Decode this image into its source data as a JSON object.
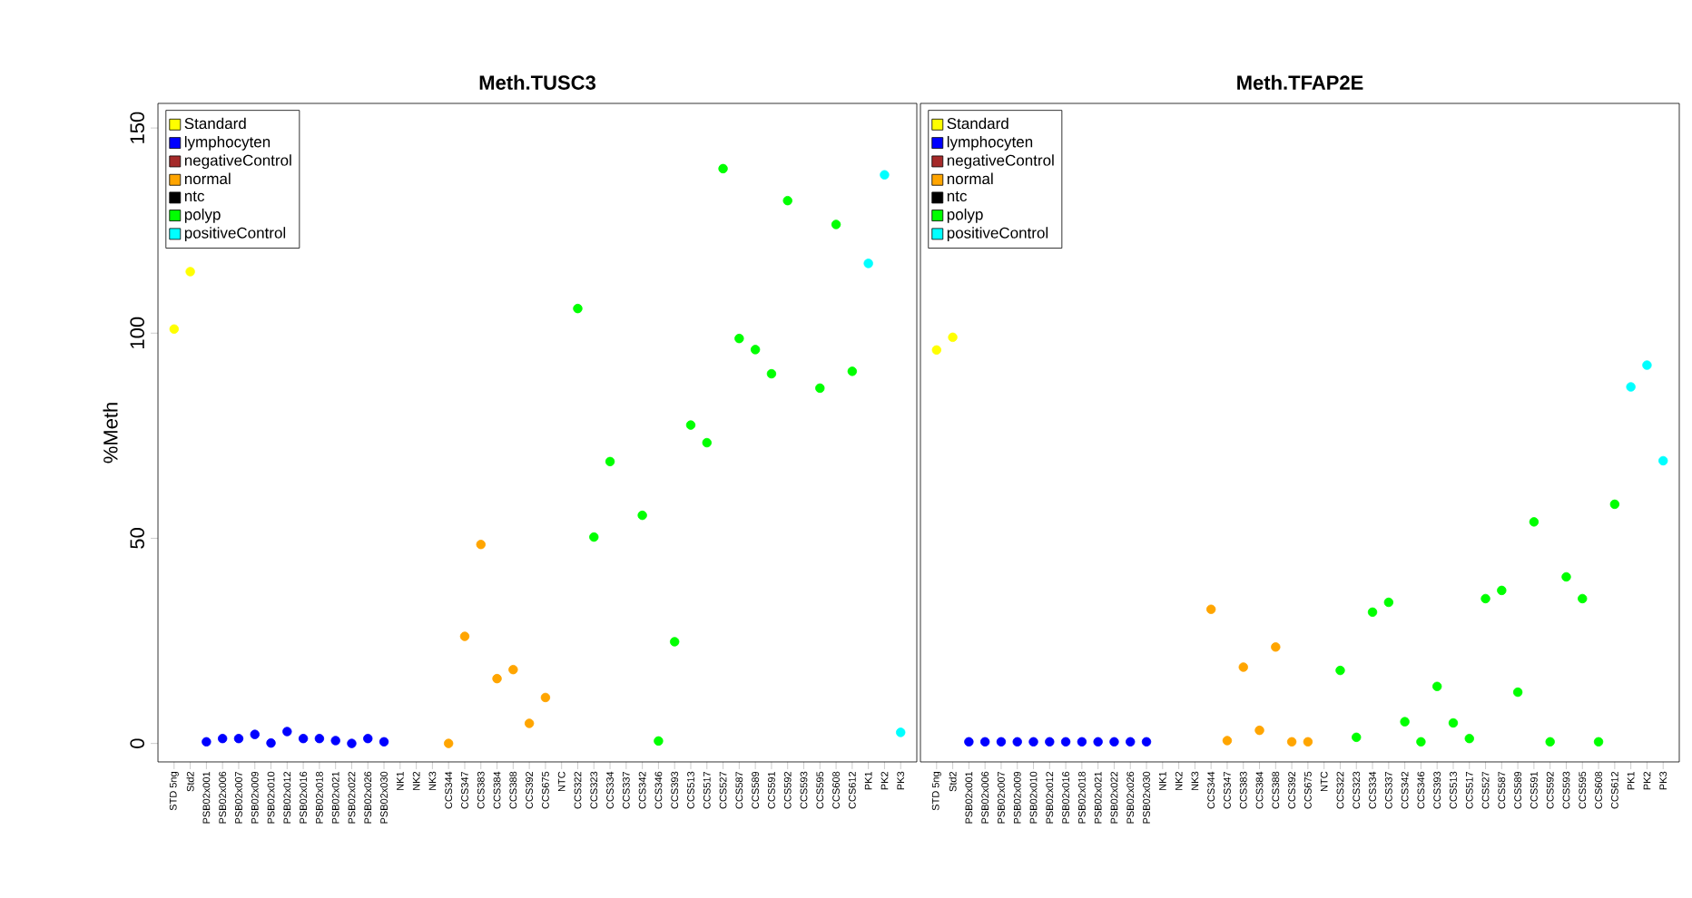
{
  "chart_data": [
    {
      "type": "scatter",
      "title": "Meth.TUSC3",
      "ylabel": "%Meth",
      "marker": "circle",
      "legend": "top left",
      "grid": false,
      "categories": [
        "STD 5ng",
        "Std2",
        "PSB02x001",
        "PSB02x006",
        "PSB02x007",
        "PSB02x009",
        "PSB02x010",
        "PSB02x012",
        "PSB02x016",
        "PSB02x018",
        "PSB02x021",
        "PSB02x022",
        "PSB02x026",
        "PSB02x030",
        "NK1",
        "NK2",
        "NK3",
        "CCS344",
        "CCS347",
        "CCS383",
        "CCS384",
        "CCS388",
        "CCS392",
        "CCS675",
        "NTC",
        "CCS322",
        "CCS323",
        "CCS334",
        "CCS337",
        "CCS342",
        "CCS346",
        "CCS393",
        "CCS513",
        "CCS517",
        "CCS527",
        "CCS587",
        "CCS589",
        "CCS591",
        "CCS592",
        "CCS593",
        "CCS595",
        "CCS608",
        "CCS612",
        "PK1",
        "PK2",
        "PK3"
      ],
      "ylim": [
        -4.5,
        156
      ],
      "yticks": [
        0,
        50,
        100,
        150
      ],
      "series": [
        {
          "name": "Standard",
          "color": "#ffff00",
          "values": [
            101,
            115,
            null,
            null,
            null,
            null,
            null,
            null,
            null,
            null,
            null,
            null,
            null,
            null,
            null,
            null,
            null,
            null,
            null,
            null,
            null,
            null,
            null,
            null,
            null,
            null,
            null,
            null,
            null,
            null,
            null,
            null,
            null,
            null,
            null,
            null,
            null,
            null,
            null,
            null,
            null,
            null,
            null,
            null,
            null,
            null
          ]
        },
        {
          "name": "lymphocyten",
          "color": "#0000ff",
          "values": [
            null,
            null,
            0.4,
            1.2,
            1.2,
            2.2,
            0.1,
            2.9,
            1.2,
            1.2,
            0.7,
            0,
            1.2,
            0.4,
            null,
            null,
            null,
            null,
            null,
            null,
            null,
            null,
            null,
            null,
            null,
            null,
            null,
            null,
            null,
            null,
            null,
            null,
            null,
            null,
            null,
            null,
            null,
            null,
            null,
            null,
            null,
            null,
            null,
            null,
            null,
            null
          ]
        },
        {
          "name": "negativeControl",
          "color": "#a52a2a",
          "values": [
            null,
            null,
            null,
            null,
            null,
            null,
            null,
            null,
            null,
            null,
            null,
            null,
            null,
            null,
            null,
            null,
            null,
            null,
            null,
            null,
            null,
            null,
            null,
            null,
            null,
            null,
            null,
            null,
            null,
            null,
            null,
            null,
            null,
            null,
            null,
            null,
            null,
            null,
            null,
            null,
            null,
            null,
            null,
            null,
            null,
            null
          ]
        },
        {
          "name": "normal",
          "color": "#ffa500",
          "values": [
            null,
            null,
            null,
            null,
            null,
            null,
            null,
            null,
            null,
            null,
            null,
            null,
            null,
            null,
            null,
            null,
            null,
            0,
            26.1,
            48.5,
            15.8,
            18.0,
            4.9,
            11.2,
            null,
            null,
            null,
            null,
            null,
            null,
            null,
            null,
            null,
            null,
            null,
            null,
            null,
            null,
            null,
            null,
            null,
            null,
            null,
            null,
            null,
            null
          ]
        },
        {
          "name": "ntc",
          "color": "#000000",
          "values": [
            null,
            null,
            null,
            null,
            null,
            null,
            null,
            null,
            null,
            null,
            null,
            null,
            null,
            null,
            null,
            null,
            null,
            null,
            null,
            null,
            null,
            null,
            null,
            null,
            null,
            null,
            null,
            null,
            null,
            null,
            null,
            null,
            null,
            null,
            null,
            null,
            null,
            null,
            null,
            null,
            null,
            null,
            null,
            null,
            null,
            null
          ]
        },
        {
          "name": "polyp",
          "color": "#00ff00",
          "values": [
            null,
            null,
            null,
            null,
            null,
            null,
            null,
            null,
            null,
            null,
            null,
            null,
            null,
            null,
            null,
            null,
            null,
            null,
            null,
            null,
            null,
            null,
            null,
            null,
            null,
            106.0,
            50.3,
            68.7,
            null,
            55.6,
            0.6,
            24.8,
            77.6,
            73.3,
            140.1,
            98.7,
            96.0,
            90.1,
            132.3,
            null,
            86.6,
            126.5,
            90.7,
            null,
            null,
            null
          ]
        },
        {
          "name": "positiveControl",
          "color": "#00ffff",
          "values": [
            null,
            null,
            null,
            null,
            null,
            null,
            null,
            null,
            null,
            null,
            null,
            null,
            null,
            null,
            null,
            null,
            null,
            null,
            null,
            null,
            null,
            null,
            null,
            null,
            null,
            null,
            null,
            null,
            null,
            null,
            null,
            null,
            null,
            null,
            null,
            null,
            null,
            null,
            null,
            null,
            null,
            null,
            null,
            117.0,
            138.6,
            2.7
          ]
        }
      ]
    },
    {
      "type": "scatter",
      "title": "Meth.TFAP2E",
      "marker": "circle",
      "legend": "top left",
      "grid": false,
      "tick_labels": "x",
      "categories": [
        "STD 5ng",
        "Std2",
        "PSB02x001",
        "PSB02x006",
        "PSB02x007",
        "PSB02x009",
        "PSB02x010",
        "PSB02x012",
        "PSB02x016",
        "PSB02x018",
        "PSB02x021",
        "PSB02x022",
        "PSB02x026",
        "PSB02x030",
        "NK1",
        "NK2",
        "NK3",
        "CCS344",
        "CCS347",
        "CCS383",
        "CCS384",
        "CCS388",
        "CCS392",
        "CCS675",
        "NTC",
        "CCS322",
        "CCS323",
        "CCS334",
        "CCS337",
        "CCS342",
        "CCS346",
        "CCS393",
        "CCS513",
        "CCS517",
        "CCS527",
        "CCS587",
        "CCS589",
        "CCS591",
        "CCS592",
        "CCS593",
        "CCS595",
        "CCS608",
        "CCS612",
        "PK1",
        "PK2",
        "PK3"
      ],
      "ylim": [
        -4.5,
        156
      ],
      "yticks": [
        0,
        50,
        100,
        150
      ],
      "series": [
        {
          "name": "Standard",
          "color": "#ffff00",
          "values": [
            95.9,
            99.0,
            null,
            null,
            null,
            null,
            null,
            null,
            null,
            null,
            null,
            null,
            null,
            null,
            null,
            null,
            null,
            null,
            null,
            null,
            null,
            null,
            null,
            null,
            null,
            null,
            null,
            null,
            null,
            null,
            null,
            null,
            null,
            null,
            null,
            null,
            null,
            null,
            null,
            null,
            null,
            null,
            null,
            null,
            null,
            null
          ]
        },
        {
          "name": "lymphocyten",
          "color": "#0000ff",
          "values": [
            null,
            null,
            0.4,
            0.4,
            0.4,
            0.4,
            0.4,
            0.4,
            0.4,
            0.4,
            0.4,
            0.4,
            0.4,
            0.4,
            null,
            null,
            null,
            null,
            null,
            null,
            null,
            null,
            null,
            null,
            null,
            null,
            null,
            null,
            null,
            null,
            null,
            null,
            null,
            null,
            null,
            null,
            null,
            null,
            null,
            null,
            null,
            null,
            null,
            null,
            null,
            null
          ]
        },
        {
          "name": "negativeControl",
          "color": "#a52a2a",
          "values": [
            null,
            null,
            null,
            null,
            null,
            null,
            null,
            null,
            null,
            null,
            null,
            null,
            null,
            null,
            null,
            null,
            null,
            null,
            null,
            null,
            null,
            null,
            null,
            null,
            null,
            null,
            null,
            null,
            null,
            null,
            null,
            null,
            null,
            null,
            null,
            null,
            null,
            null,
            null,
            null,
            null,
            null,
            null,
            null,
            null,
            null
          ]
        },
        {
          "name": "normal",
          "color": "#ffa500",
          "values": [
            null,
            null,
            null,
            null,
            null,
            null,
            null,
            null,
            null,
            null,
            null,
            null,
            null,
            null,
            null,
            null,
            null,
            32.7,
            0.7,
            18.6,
            3.2,
            23.5,
            0.4,
            0.4,
            null,
            null,
            null,
            null,
            null,
            null,
            null,
            null,
            null,
            null,
            null,
            null,
            null,
            null,
            null,
            null,
            null,
            null,
            null,
            null,
            null,
            null
          ]
        },
        {
          "name": "ntc",
          "color": "#000000",
          "values": [
            null,
            null,
            null,
            null,
            null,
            null,
            null,
            null,
            null,
            null,
            null,
            null,
            null,
            null,
            null,
            null,
            null,
            null,
            null,
            null,
            null,
            null,
            null,
            null,
            null,
            null,
            null,
            null,
            null,
            null,
            null,
            null,
            null,
            null,
            null,
            null,
            null,
            null,
            null,
            null,
            null,
            null,
            null,
            null,
            null,
            null
          ]
        },
        {
          "name": "polyp",
          "color": "#00ff00",
          "values": [
            null,
            null,
            null,
            null,
            null,
            null,
            null,
            null,
            null,
            null,
            null,
            null,
            null,
            null,
            null,
            null,
            null,
            null,
            null,
            null,
            null,
            null,
            null,
            null,
            null,
            17.8,
            1.5,
            32.0,
            34.4,
            5.3,
            0.4,
            13.9,
            5.0,
            1.2,
            35.3,
            37.3,
            12.5,
            54.0,
            0.4,
            40.6,
            35.3,
            0.4,
            58.3,
            null,
            null,
            null
          ]
        },
        {
          "name": "positiveControl",
          "color": "#00ffff",
          "values": [
            null,
            null,
            null,
            null,
            null,
            null,
            null,
            null,
            null,
            null,
            null,
            null,
            null,
            null,
            null,
            null,
            null,
            null,
            null,
            null,
            null,
            null,
            null,
            null,
            null,
            null,
            null,
            null,
            null,
            null,
            null,
            null,
            null,
            null,
            null,
            null,
            null,
            null,
            null,
            null,
            null,
            null,
            null,
            86.9,
            92.2,
            68.9
          ]
        }
      ]
    }
  ]
}
